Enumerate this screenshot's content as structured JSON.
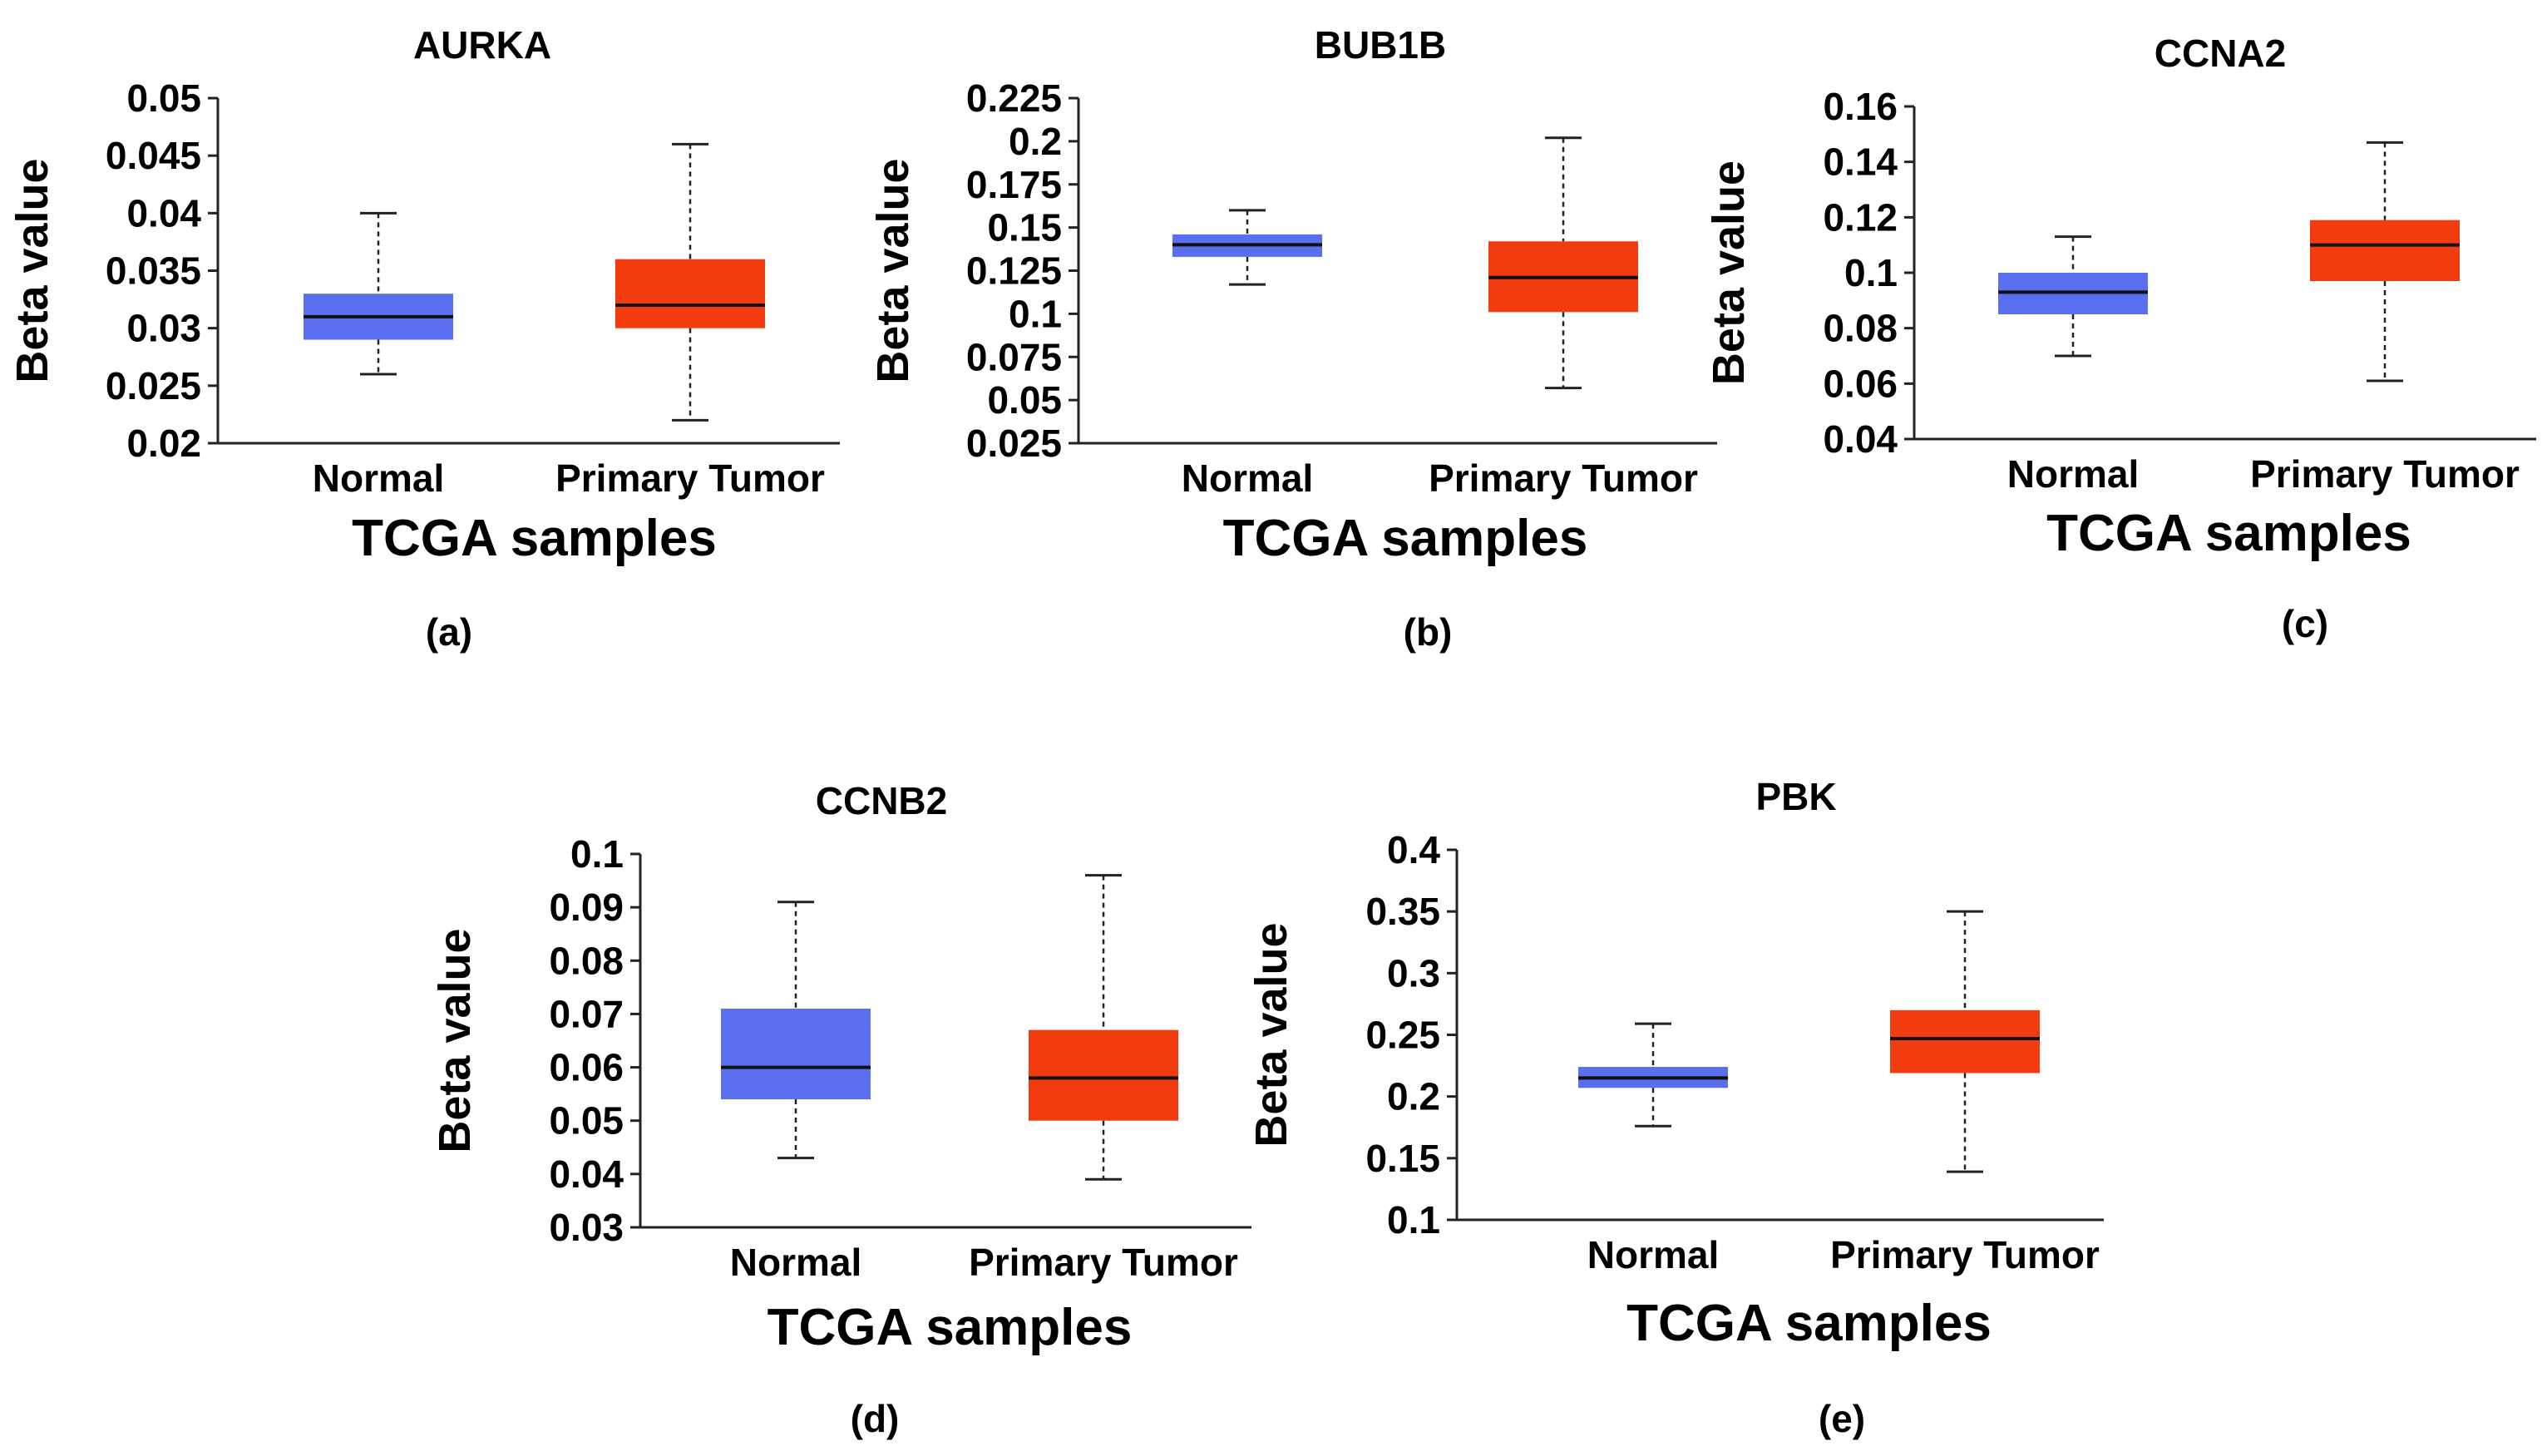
{
  "figure": {
    "panel_labels": [
      "(a)",
      "(b)",
      "(c)",
      "(d)",
      "(e)"
    ]
  },
  "colors": {
    "normal": "#5a6ef0",
    "tumor": "#f23c10"
  },
  "chart_data": [
    {
      "type": "box",
      "title": "AURKA",
      "xlabel": "TCGA samples",
      "ylabel": "Beta value",
      "categories": [
        "Normal",
        "Primary Tumor"
      ],
      "ylim": [
        0.02,
        0.05
      ],
      "yticks": [
        "0.02",
        "0.025",
        "0.03",
        "0.035",
        "0.04",
        "0.045",
        "0.05"
      ],
      "boxes": [
        {
          "name": "Normal",
          "min": 0.026,
          "q1": 0.029,
          "median": 0.031,
          "q3": 0.033,
          "max": 0.04
        },
        {
          "name": "Primary Tumor",
          "min": 0.022,
          "q1": 0.03,
          "median": 0.032,
          "q3": 0.036,
          "max": 0.046
        }
      ]
    },
    {
      "type": "box",
      "title": "BUB1B",
      "xlabel": "TCGA samples",
      "ylabel": "Beta value",
      "categories": [
        "Normal",
        "Primary Tumor"
      ],
      "ylim": [
        0.025,
        0.225
      ],
      "yticks": [
        "0.025",
        "0.05",
        "0.075",
        "0.1",
        "0.125",
        "0.15",
        "0.175",
        "0.2",
        "0.225"
      ],
      "boxes": [
        {
          "name": "Normal",
          "min": 0.117,
          "q1": 0.133,
          "median": 0.14,
          "q3": 0.146,
          "max": 0.16
        },
        {
          "name": "Primary Tumor",
          "min": 0.057,
          "q1": 0.101,
          "median": 0.121,
          "q3": 0.142,
          "max": 0.202
        }
      ]
    },
    {
      "type": "box",
      "title": "CCNA2",
      "xlabel": "TCGA samples",
      "ylabel": "Beta value",
      "categories": [
        "Normal",
        "Primary Tumor"
      ],
      "ylim": [
        0.04,
        0.16
      ],
      "yticks": [
        "0.04",
        "0.06",
        "0.08",
        "0.1",
        "0.12",
        "0.14",
        "0.16"
      ],
      "boxes": [
        {
          "name": "Normal",
          "min": 0.07,
          "q1": 0.085,
          "median": 0.093,
          "q3": 0.1,
          "max": 0.113
        },
        {
          "name": "Primary Tumor",
          "min": 0.061,
          "q1": 0.097,
          "median": 0.11,
          "q3": 0.119,
          "max": 0.147
        }
      ]
    },
    {
      "type": "box",
      "title": "CCNB2",
      "xlabel": "TCGA samples",
      "ylabel": "Beta value",
      "categories": [
        "Normal",
        "Primary Tumor"
      ],
      "ylim": [
        0.03,
        0.1
      ],
      "yticks": [
        "0.03",
        "0.04",
        "0.05",
        "0.06",
        "0.07",
        "0.08",
        "0.09",
        "0.1"
      ],
      "boxes": [
        {
          "name": "Normal",
          "min": 0.043,
          "q1": 0.054,
          "median": 0.06,
          "q3": 0.071,
          "max": 0.091
        },
        {
          "name": "Primary Tumor",
          "min": 0.039,
          "q1": 0.05,
          "median": 0.058,
          "q3": 0.067,
          "max": 0.096
        }
      ]
    },
    {
      "type": "box",
      "title": "PBK",
      "xlabel": "TCGA samples",
      "ylabel": "Beta value",
      "categories": [
        "Normal",
        "Primary Tumor"
      ],
      "ylim": [
        0.1,
        0.4
      ],
      "yticks": [
        "0.1",
        "0.15",
        "0.2",
        "0.25",
        "0.3",
        "0.35",
        "0.4"
      ],
      "boxes": [
        {
          "name": "Normal",
          "min": 0.176,
          "q1": 0.207,
          "median": 0.215,
          "q3": 0.224,
          "max": 0.259
        },
        {
          "name": "Primary Tumor",
          "min": 0.139,
          "q1": 0.219,
          "median": 0.247,
          "q3": 0.27,
          "max": 0.35
        }
      ]
    }
  ]
}
